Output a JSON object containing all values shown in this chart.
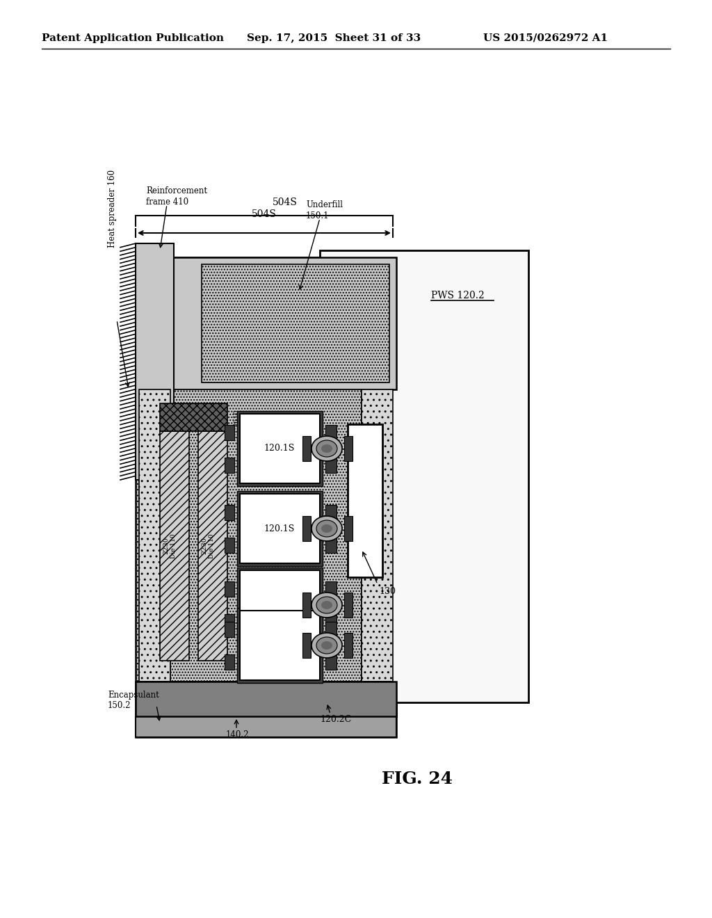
{
  "header_left": "Patent Application Publication",
  "header_center": "Sep. 17, 2015  Sheet 31 of 33",
  "header_right": "US 2015/0262972 A1",
  "figure_label": "FIG. 24",
  "bg_color": "#ffffff",
  "colors": {
    "black": "#000000",
    "white": "#ffffff",
    "light_gray": "#d8d8d8",
    "medium_gray": "#a0a0a0",
    "dark_gray": "#505050",
    "encap_gray": "#c0c0c0",
    "hs_gray": "#c8c8c8",
    "pws_bg": "#f8f8f8",
    "underfill_gray": "#c8c8c8",
    "dark_pad": "#383838",
    "ball_gray": "#888888",
    "substrate_gray": "#808080"
  },
  "dim_label": "504S",
  "label_reinforcement": [
    "Reinforcement",
    "frame 410"
  ],
  "label_heat_spreader": "Heat spreader 160",
  "label_underfill": [
    "Underfill",
    "150.1"
  ],
  "label_encapsulant": [
    "Encapsulant",
    "150.2"
  ],
  "label_140": "140.2",
  "label_130": "130",
  "label_120_2C": "120.2C",
  "label_pws": "PWS 120.2",
  "label_fig": "FIG. 24"
}
